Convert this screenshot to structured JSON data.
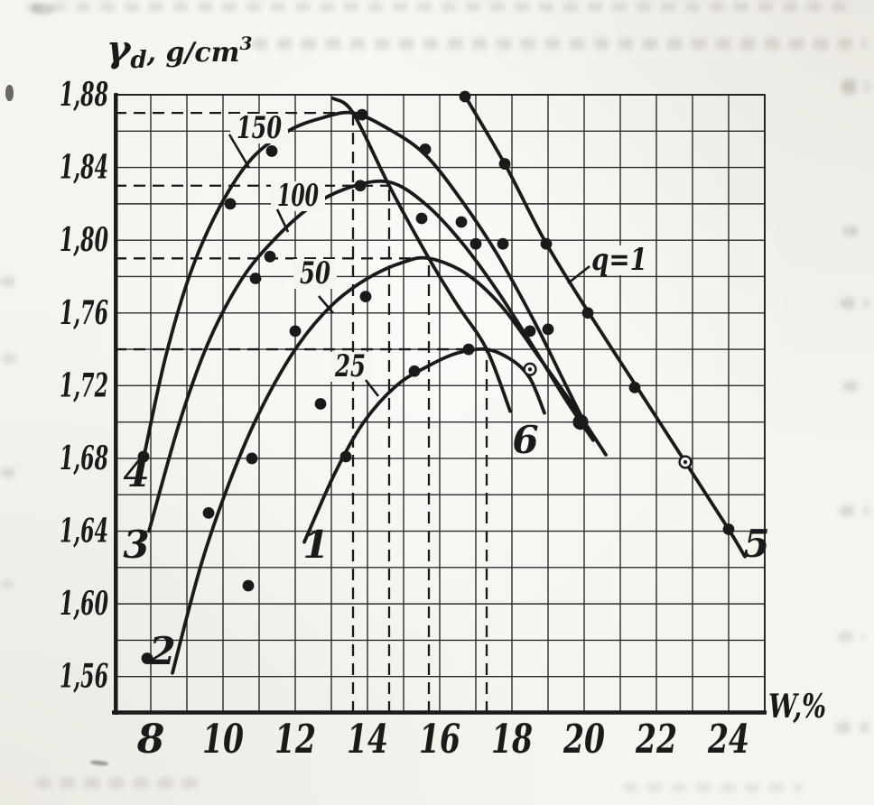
{
  "figure": {
    "paper_color": "#f5f4ef",
    "ink_color": "#1a1a1a",
    "description": "Scanned textbook figure: soil compaction curves, dry density versus moisture content"
  },
  "chart_data": {
    "type": "line",
    "title": "",
    "xlabel": "W,%",
    "ylabel": "γd, g/cm³",
    "ylabel_parts": {
      "symbol": "γ",
      "sub": "d",
      "rest": ", g/cm",
      "sup": "3"
    },
    "xlim": [
      7,
      25
    ],
    "ylim": [
      1.54,
      1.88
    ],
    "x_grid_step": 1,
    "y_grid_step": 0.02,
    "grid": true,
    "legend_position": "none",
    "x_ticks": [
      {
        "v": 8,
        "label": "8"
      },
      {
        "v": 10,
        "label": "10"
      },
      {
        "v": 12,
        "label": "12"
      },
      {
        "v": 14,
        "label": "14"
      },
      {
        "v": 16,
        "label": "16"
      },
      {
        "v": 18,
        "label": "18"
      },
      {
        "v": 20,
        "label": "20"
      },
      {
        "v": 22,
        "label": "22"
      },
      {
        "v": 24,
        "label": "24"
      }
    ],
    "y_ticks": [
      {
        "v": 1.88,
        "label": "1,88"
      },
      {
        "v": 1.84,
        "label": "1,84"
      },
      {
        "v": 1.8,
        "label": "1,80"
      },
      {
        "v": 1.76,
        "label": "1,76"
      },
      {
        "v": 1.72,
        "label": "1,72"
      },
      {
        "v": 1.68,
        "label": "1,68"
      },
      {
        "v": 1.64,
        "label": "1,64"
      },
      {
        "v": 1.6,
        "label": "1,60"
      },
      {
        "v": 1.56,
        "label": "1,56"
      }
    ],
    "series": [
      {
        "id": "curve-150",
        "label": "150",
        "end_label": "4",
        "points": [
          [
            7.8,
            1.68
          ],
          [
            8.4,
            1.735
          ],
          [
            9.1,
            1.782
          ],
          [
            9.9,
            1.818
          ],
          [
            10.8,
            1.845
          ],
          [
            11.8,
            1.86
          ],
          [
            12.7,
            1.867
          ],
          [
            13.6,
            1.87
          ],
          [
            14.6,
            1.861
          ],
          [
            15.6,
            1.847
          ],
          [
            16.6,
            1.822
          ],
          [
            17.6,
            1.792
          ],
          [
            18.6,
            1.756
          ],
          [
            19.4,
            1.724
          ],
          [
            19.9,
            1.704
          ]
        ]
      },
      {
        "id": "curve-100",
        "label": "100",
        "end_label": "3",
        "points": [
          [
            7.95,
            1.64
          ],
          [
            8.8,
            1.7
          ],
          [
            9.6,
            1.744
          ],
          [
            10.5,
            1.778
          ],
          [
            11.4,
            1.8
          ],
          [
            12.4,
            1.818
          ],
          [
            13.5,
            1.829
          ],
          [
            14.6,
            1.832
          ],
          [
            15.6,
            1.82
          ],
          [
            16.6,
            1.799
          ],
          [
            17.6,
            1.772
          ],
          [
            18.6,
            1.741
          ],
          [
            19.5,
            1.712
          ],
          [
            20.25,
            1.69
          ]
        ]
      },
      {
        "id": "curve-50",
        "label": "50",
        "end_label": "2",
        "points": [
          [
            8.6,
            1.562
          ],
          [
            9.4,
            1.622
          ],
          [
            10.2,
            1.668
          ],
          [
            11.0,
            1.705
          ],
          [
            12.0,
            1.74
          ],
          [
            13.0,
            1.764
          ],
          [
            14.0,
            1.779
          ],
          [
            15.0,
            1.788
          ],
          [
            15.7,
            1.79
          ],
          [
            16.7,
            1.782
          ],
          [
            17.7,
            1.764
          ],
          [
            18.7,
            1.737
          ],
          [
            19.7,
            1.709
          ],
          [
            20.6,
            1.682
          ]
        ]
      },
      {
        "id": "curve-25",
        "label": "25",
        "end_label": "1",
        "points": [
          [
            12.25,
            1.634
          ],
          [
            13.1,
            1.672
          ],
          [
            13.9,
            1.7
          ],
          [
            14.8,
            1.72
          ],
          [
            15.7,
            1.731
          ],
          [
            16.5,
            1.738
          ],
          [
            17.3,
            1.74
          ],
          [
            18.0,
            1.734
          ],
          [
            18.5,
            1.724
          ],
          [
            18.9,
            1.705
          ]
        ]
      },
      {
        "id": "optimum-line",
        "label": "",
        "end_label": "6",
        "points": [
          [
            13.05,
            1.878
          ],
          [
            13.6,
            1.87
          ],
          [
            14.6,
            1.83
          ],
          [
            15.7,
            1.79
          ],
          [
            16.5,
            1.764
          ],
          [
            17.3,
            1.74
          ],
          [
            17.95,
            1.706
          ]
        ]
      },
      {
        "id": "saturation-line",
        "label": "q=1",
        "end_label": "5",
        "points": [
          [
            16.68,
            1.88
          ],
          [
            17.8,
            1.842
          ],
          [
            18.9,
            1.8
          ],
          [
            20.1,
            1.761
          ],
          [
            21.4,
            1.721
          ],
          [
            22.8,
            1.678
          ],
          [
            24.0,
            1.641
          ],
          [
            24.45,
            1.626
          ]
        ]
      }
    ],
    "scatter_points": [
      [
        7.9,
        1.57
      ],
      [
        7.8,
        1.681
      ],
      [
        9.6,
        1.65
      ],
      [
        10.7,
        1.61
      ],
      [
        10.8,
        1.68
      ],
      [
        10.2,
        1.82
      ],
      [
        10.9,
        1.779
      ],
      [
        11.3,
        1.791
      ],
      [
        11.35,
        1.849
      ],
      [
        12.0,
        1.75
      ],
      [
        12.7,
        1.71
      ],
      [
        13.4,
        1.681
      ],
      [
        13.8,
        1.83
      ],
      [
        13.85,
        1.869
      ],
      [
        13.95,
        1.769
      ],
      [
        15.3,
        1.728
      ],
      [
        15.5,
        1.812
      ],
      [
        15.6,
        1.85
      ],
      [
        16.6,
        1.81
      ],
      [
        16.8,
        1.74
      ],
      [
        16.7,
        1.879
      ],
      [
        17.0,
        1.798
      ],
      [
        17.75,
        1.798
      ],
      [
        17.8,
        1.842
      ],
      [
        18.5,
        1.75
      ],
      [
        18.95,
        1.798
      ],
      [
        19.0,
        1.751
      ],
      [
        20.1,
        1.76
      ],
      [
        21.4,
        1.719
      ],
      [
        24.0,
        1.641
      ]
    ],
    "open_points": [
      [
        18.5,
        1.729
      ],
      [
        22.8,
        1.678
      ]
    ],
    "cluster_point": [
      19.9,
      1.7
    ],
    "optimum_guides": [
      {
        "w": 13.6,
        "gd": 1.87
      },
      {
        "w": 14.6,
        "gd": 1.83
      },
      {
        "w": 15.7,
        "gd": 1.79
      },
      {
        "w": 17.3,
        "gd": 1.74
      }
    ]
  }
}
